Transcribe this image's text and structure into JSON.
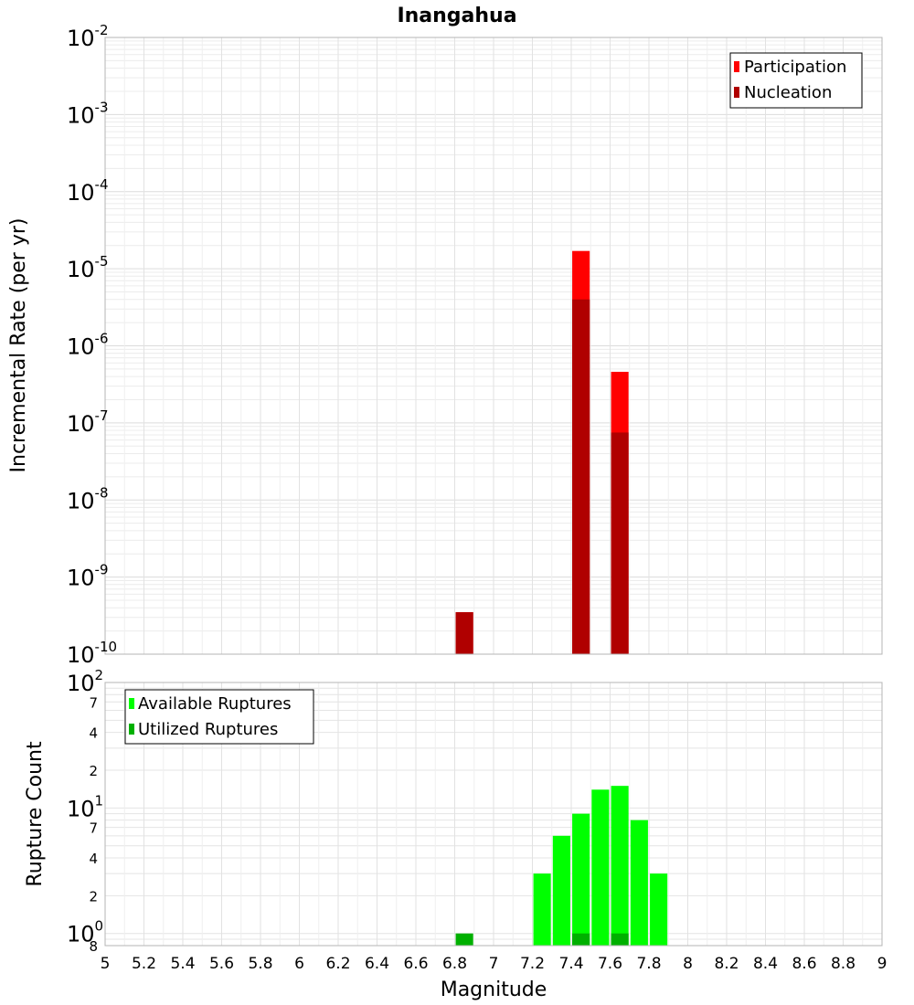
{
  "chart_data": [
    {
      "type": "bar",
      "title": "Inangahua",
      "xlabel": "",
      "ylabel": "Incremental Rate (per yr)",
      "yscale": "log",
      "ylim": [
        1e-10,
        0.01
      ],
      "xlim": [
        5,
        9
      ],
      "y_ticks": [
        {
          "base": "10",
          "exp": "-2",
          "value": 0.01
        },
        {
          "base": "10",
          "exp": "-3",
          "value": 0.001
        },
        {
          "base": "10",
          "exp": "-4",
          "value": 0.0001
        },
        {
          "base": "10",
          "exp": "-5",
          "value": 1e-05
        },
        {
          "base": "10",
          "exp": "-6",
          "value": 1e-06
        },
        {
          "base": "10",
          "exp": "-7",
          "value": 1e-07
        },
        {
          "base": "10",
          "exp": "-8",
          "value": 1e-08
        },
        {
          "base": "10",
          "exp": "-9",
          "value": 1e-09
        },
        {
          "base": "10",
          "exp": "-10",
          "value": 1e-10
        }
      ],
      "grid": true,
      "legend_position": "top-right",
      "bar_width": 0.09,
      "series": [
        {
          "name": "Participation",
          "color": "#ff0000",
          "points": [
            {
              "x": 6.85,
              "y": 3.5e-10
            },
            {
              "x": 7.45,
              "y": 1.7e-05
            },
            {
              "x": 7.65,
              "y": 4.6e-07
            }
          ]
        },
        {
          "name": "Nucleation",
          "color": "#b00000",
          "points": [
            {
              "x": 6.85,
              "y": 3.5e-10
            },
            {
              "x": 7.45,
              "y": 4e-06
            },
            {
              "x": 7.65,
              "y": 7.5e-08
            }
          ]
        }
      ]
    },
    {
      "type": "bar",
      "title": "",
      "xlabel": "Magnitude",
      "ylabel": "Rupture Count",
      "yscale": "log",
      "ylim": [
        0.8,
        100
      ],
      "xlim": [
        5,
        9
      ],
      "x_ticks": [
        "5",
        "5.2",
        "5.4",
        "5.6",
        "5.8",
        "6",
        "6.2",
        "6.4",
        "6.6",
        "6.8",
        "7",
        "7.2",
        "7.4",
        "7.6",
        "7.8",
        "8",
        "8.2",
        "8.4",
        "8.6",
        "8.8",
        "9"
      ],
      "y_major_ticks": [
        {
          "base": "10",
          "exp": "2",
          "value": 100
        },
        {
          "base": "10",
          "exp": "1",
          "value": 10
        },
        {
          "base": "10",
          "exp": "0",
          "value": 1
        }
      ],
      "y_minor_ticks": [
        {
          "label": "7",
          "value": 70
        },
        {
          "label": "4",
          "value": 40
        },
        {
          "label": "2",
          "value": 20
        },
        {
          "label": "7",
          "value": 7
        },
        {
          "label": "4",
          "value": 4
        },
        {
          "label": "2",
          "value": 2
        },
        {
          "label": "8",
          "value": 0.8
        }
      ],
      "grid": true,
      "legend_position": "top-left",
      "bar_width": 0.09,
      "series": [
        {
          "name": "Available Ruptures",
          "color": "#00ff00",
          "points": [
            {
              "x": 7.25,
              "y": 3
            },
            {
              "x": 7.35,
              "y": 6
            },
            {
              "x": 7.45,
              "y": 9
            },
            {
              "x": 7.55,
              "y": 14
            },
            {
              "x": 7.65,
              "y": 15
            },
            {
              "x": 7.75,
              "y": 8
            },
            {
              "x": 7.85,
              "y": 3
            }
          ]
        },
        {
          "name": "Utilized Ruptures",
          "color": "#00b000",
          "points": [
            {
              "x": 6.85,
              "y": 1
            },
            {
              "x": 7.45,
              "y": 1
            },
            {
              "x": 7.65,
              "y": 1
            }
          ]
        }
      ]
    }
  ]
}
